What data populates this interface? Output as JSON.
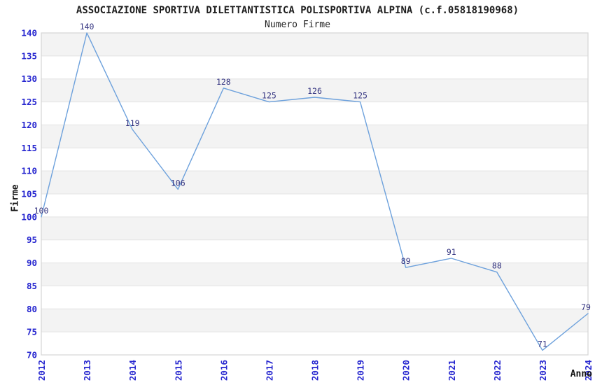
{
  "chart_data": {
    "type": "line",
    "title": "ASSOCIAZIONE SPORTIVA DILETTANTISTICA POLISPORTIVA ALPINA (c.f.05818190968)",
    "subtitle": "Numero Firme",
    "xlabel": "Anno",
    "ylabel": "Firme",
    "x": [
      "2012",
      "2013",
      "2014",
      "2015",
      "2016",
      "2017",
      "2018",
      "2019",
      "2020",
      "2021",
      "2022",
      "2023",
      "2024"
    ],
    "values": [
      100,
      140,
      119,
      106,
      128,
      125,
      126,
      125,
      89,
      91,
      88,
      71,
      79
    ],
    "ylim": [
      70,
      140
    ],
    "ytick_step": 5,
    "yticks": [
      70,
      75,
      80,
      85,
      90,
      95,
      100,
      105,
      110,
      115,
      120,
      125,
      130,
      135,
      140
    ],
    "grid": "horizontal-lines with alternating shaded bands",
    "legend": "none",
    "point_labels_visible": true,
    "x_tick_rotation_deg": -90,
    "colors": {
      "line": "#6da1dc",
      "tick_label": "#2525cf",
      "point_label": "#333380",
      "band_fill": "#f3f3f3",
      "grid_line": "#e3e3e3",
      "plot_border": "#d5d5d5",
      "title_text": "#1e1e1e",
      "background": "#ffffff"
    }
  }
}
